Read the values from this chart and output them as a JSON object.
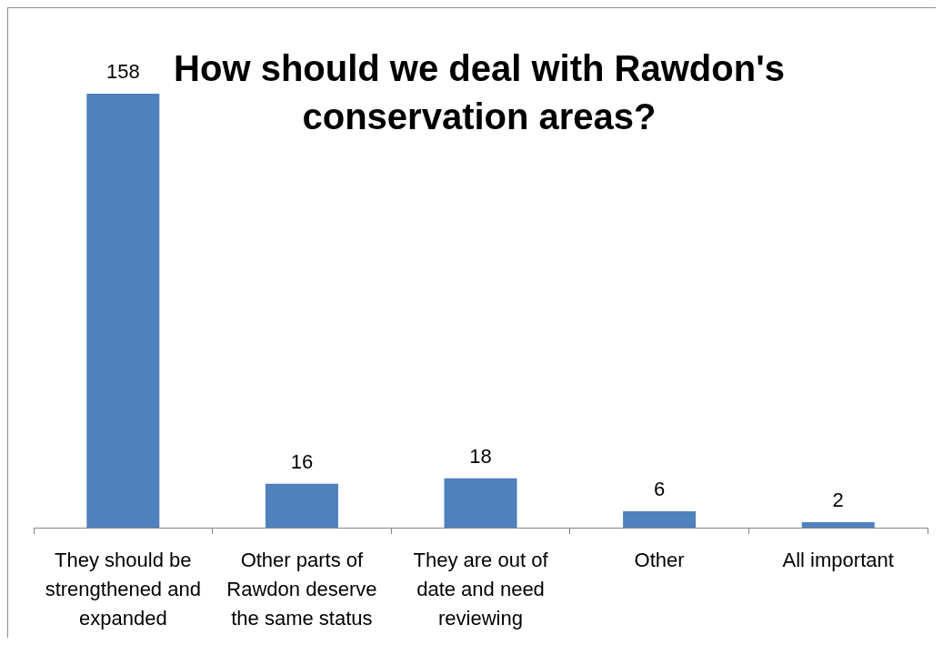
{
  "chart_data": {
    "type": "bar",
    "title": "How should we deal with Rawdon's conservation areas?",
    "categories": [
      "They should be strengthened and expanded",
      "Other parts of Rawdon deserve the same status",
      "They are out of date and need reviewing",
      "Other",
      "All important"
    ],
    "values": [
      158,
      16,
      18,
      6,
      2
    ],
    "color": "#4f81bd",
    "data_labels": true
  }
}
